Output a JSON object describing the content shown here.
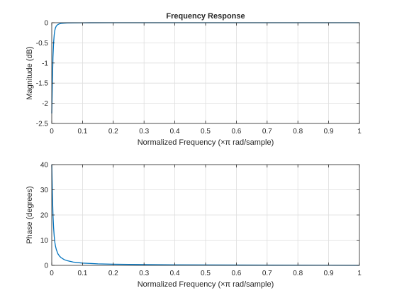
{
  "chart_data": [
    {
      "type": "line",
      "title": "Frequency Response",
      "xlabel": "Normalized Frequency  (×π rad/sample)",
      "ylabel": "Magnitude (dB)",
      "xlim": [
        0,
        1
      ],
      "ylim": [
        -2.5,
        0
      ],
      "xticks": [
        0,
        0.1,
        0.2,
        0.3,
        0.4,
        0.5,
        0.6,
        0.7,
        0.8,
        0.9,
        1
      ],
      "yticks": [
        -2.5,
        -2,
        -1.5,
        -1,
        -0.5,
        0
      ],
      "xtick_labels": [
        "0",
        "0.1",
        "0.2",
        "0.3",
        "0.4",
        "0.5",
        "0.6",
        "0.7",
        "0.8",
        "0.9",
        "1"
      ],
      "ytick_labels": [
        "-2.5",
        "-2",
        "-1.5",
        "-1",
        "-0.5",
        "0"
      ],
      "grid": true,
      "series": [
        {
          "color": "#0072bd",
          "x": [
            0,
            0.002,
            0.004,
            0.006,
            0.008,
            0.01,
            0.012,
            0.015,
            0.02,
            0.025,
            0.03,
            0.04,
            0.05,
            0.07,
            0.1,
            0.2,
            0.4,
            0.6,
            0.8,
            1.0
          ],
          "y": [
            -2.25,
            -1.5,
            -0.85,
            -0.5,
            -0.3,
            -0.19,
            -0.13,
            -0.08,
            -0.045,
            -0.028,
            -0.018,
            -0.01,
            -0.006,
            -0.003,
            -0.0015,
            -0.0004,
            -0.0001,
            -3e-05,
            -1e-05,
            0
          ]
        }
      ]
    },
    {
      "type": "line",
      "title": "",
      "xlabel": "Normalized Frequency  (×π rad/sample)",
      "ylabel": "Phase (degrees)",
      "xlim": [
        0,
        1
      ],
      "ylim": [
        0,
        40
      ],
      "xticks": [
        0,
        0.1,
        0.2,
        0.3,
        0.4,
        0.5,
        0.6,
        0.7,
        0.8,
        0.9,
        1
      ],
      "yticks": [
        0,
        10,
        20,
        30,
        40
      ],
      "xtick_labels": [
        "0",
        "0.1",
        "0.2",
        "0.3",
        "0.4",
        "0.5",
        "0.6",
        "0.7",
        "0.8",
        "0.9",
        "1"
      ],
      "ytick_labels": [
        "0",
        "10",
        "20",
        "30",
        "40"
      ],
      "grid": true,
      "series": [
        {
          "color": "#0072bd",
          "x": [
            0,
            0.002,
            0.004,
            0.006,
            0.008,
            0.01,
            0.012,
            0.015,
            0.02,
            0.025,
            0.03,
            0.04,
            0.05,
            0.07,
            0.1,
            0.15,
            0.2,
            0.3,
            0.4,
            0.5,
            0.6,
            0.7,
            0.8,
            0.9,
            1.0
          ],
          "y": [
            40,
            29,
            20,
            15,
            11.5,
            9.2,
            7.7,
            6.2,
            4.6,
            3.7,
            3.1,
            2.3,
            1.85,
            1.3,
            0.9,
            0.6,
            0.45,
            0.3,
            0.22,
            0.17,
            0.13,
            0.1,
            0.07,
            0.04,
            0
          ]
        }
      ]
    }
  ]
}
